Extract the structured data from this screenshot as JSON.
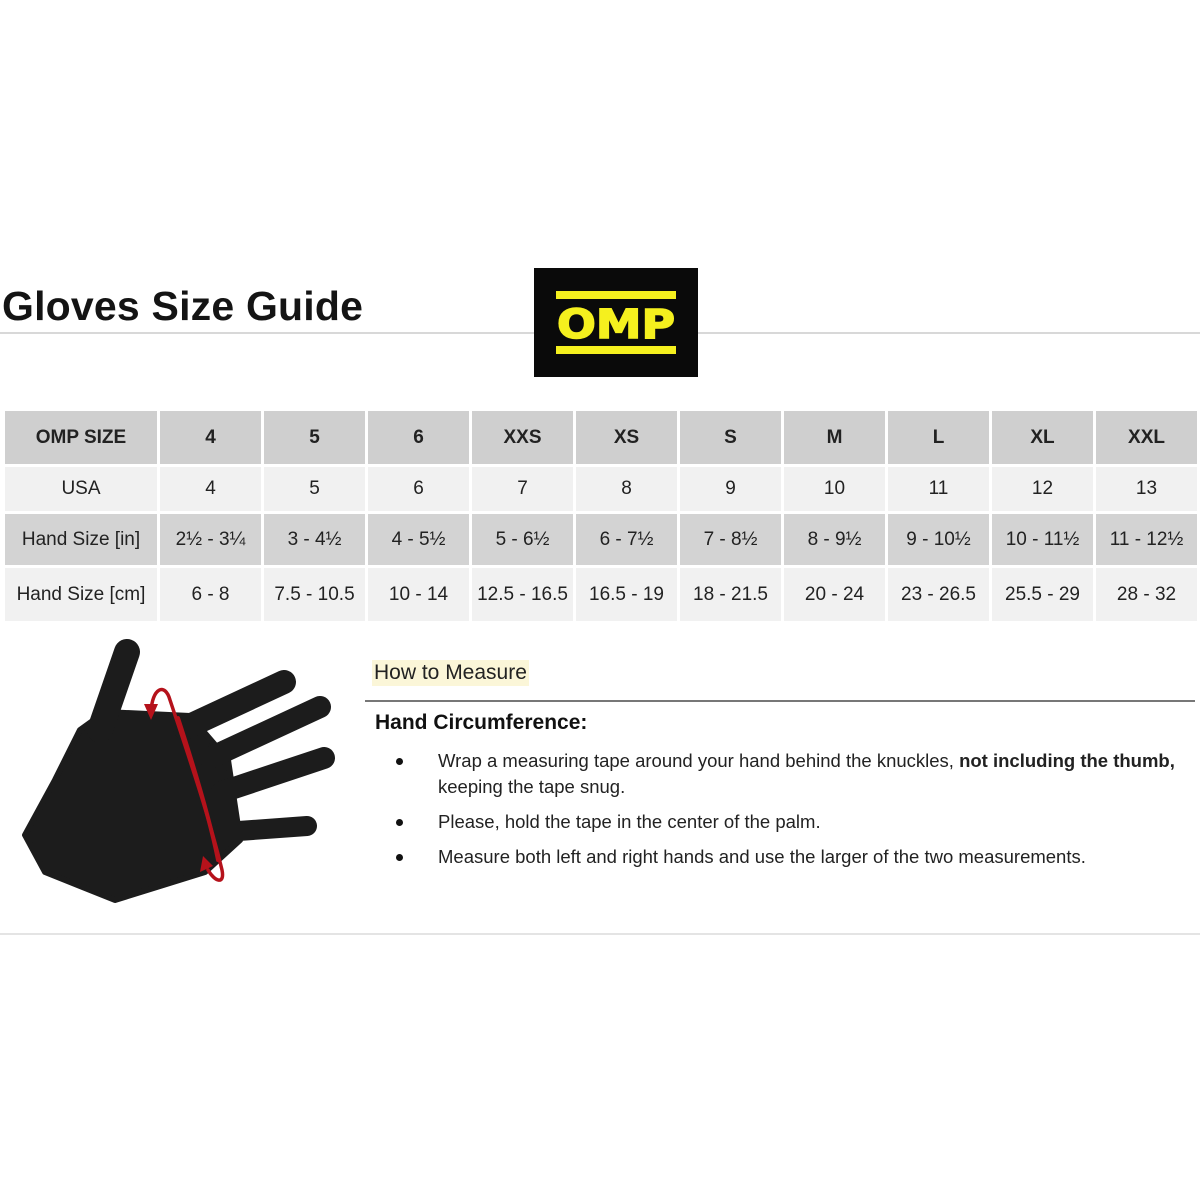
{
  "title": "Gloves Size Guide",
  "logo": {
    "text": "OMP",
    "background": "#0a0a0a",
    "color": "#f5f01e"
  },
  "table": {
    "row_headers": [
      "OMP SIZE",
      "USA",
      "Hand Size [in]",
      "Hand Size [cm]"
    ],
    "omp_size": [
      "4",
      "5",
      "6",
      "XXS",
      "XS",
      "S",
      "M",
      "L",
      "XL",
      "XXL"
    ],
    "usa": [
      "4",
      "5",
      "6",
      "7",
      "8",
      "9",
      "10",
      "11",
      "12",
      "13"
    ],
    "hand_in": [
      "2½ - 3¼",
      "3 - 4½",
      "4 - 5½",
      "5 - 6½",
      "6 - 7½",
      "7 - 8½",
      "8 - 9½",
      "9 - 10½",
      "10 - 11½",
      "11 - 12½"
    ],
    "hand_cm": [
      "6 - 8",
      "7.5 - 10.5",
      "10 - 14",
      "12.5 - 16.5",
      "16.5 - 19",
      "18 - 21.5",
      "20 - 24",
      "23 - 26.5",
      "25.5 - 29",
      "28 - 32"
    ]
  },
  "measure": {
    "heading": "How to Measure",
    "subheading": "Hand Circumference:",
    "bullets": [
      {
        "text": "Wrap a measuring tape around your hand behind the knuckles, ",
        "bold": "not including the thumb,",
        "rest": " keeping the tape snug."
      },
      {
        "text": "Please, hold the tape in the center of the palm."
      },
      {
        "text": "Measure both left and right hands and use the larger of the two measurements."
      }
    ]
  },
  "illustration": {
    "icon": "hand-measuring-icon",
    "hand_color": "#1c1c1c",
    "tape_color": "#b5121b"
  }
}
